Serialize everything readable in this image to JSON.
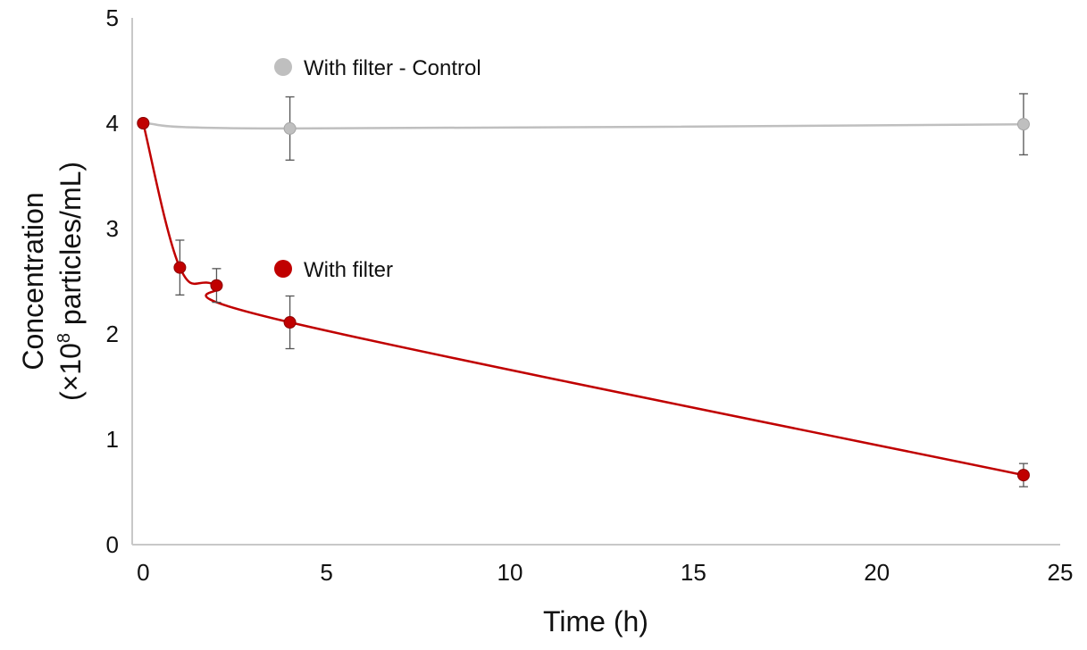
{
  "chart_data": {
    "type": "line",
    "title": "",
    "xlabel": "Time (h)",
    "ylabel": [
      "Concentration",
      "(×10",
      "8",
      " particles/mL)"
    ],
    "xlim": [
      -0.3,
      25
    ],
    "ylim": [
      0,
      5
    ],
    "xticks": [
      "0",
      "5",
      "10",
      "15",
      "20",
      "25"
    ],
    "yticks": [
      "0",
      "1",
      "2",
      "3",
      "4",
      "5"
    ],
    "legend_placement": "in-plot",
    "series": [
      {
        "name": "With filter - Control",
        "color": "#bfbfbf",
        "x": [
          0,
          4,
          24
        ],
        "y": [
          4.0,
          3.95,
          3.99
        ],
        "err": [
          0,
          0.3,
          0.29
        ]
      },
      {
        "name": "With filter",
        "color": "#c00000",
        "x": [
          0,
          1,
          2,
          4,
          24
        ],
        "y": [
          4.0,
          2.63,
          2.46,
          2.11,
          0.66
        ],
        "err": [
          0,
          0.26,
          0.16,
          0.25,
          0.11
        ]
      }
    ]
  }
}
